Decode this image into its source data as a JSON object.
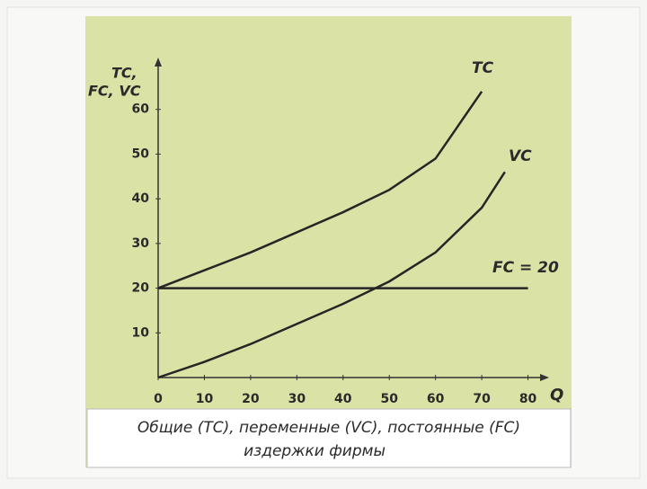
{
  "chart_data": {
    "type": "line",
    "y_label_lines": [
      "TC,",
      "FC, VC"
    ],
    "x_label": "Q",
    "xlim": [
      0,
      83
    ],
    "ylim": [
      0,
      70
    ],
    "xticks": [
      0,
      10,
      20,
      30,
      40,
      50,
      60,
      70,
      80
    ],
    "yticks": [
      10,
      20,
      30,
      40,
      50,
      60
    ],
    "series": [
      {
        "name": "TC",
        "color": "#262626",
        "x": [
          0,
          10,
          20,
          30,
          40,
          50,
          60,
          70
        ],
        "values": [
          20,
          24,
          28,
          32.5,
          37,
          42,
          49,
          64
        ]
      },
      {
        "name": "VC",
        "color": "#262626",
        "x": [
          0,
          10,
          20,
          30,
          40,
          50,
          60,
          70,
          75
        ],
        "values": [
          0,
          3.5,
          7.5,
          12,
          16.5,
          21.5,
          28,
          38,
          46
        ]
      },
      {
        "name": "FC = 20",
        "color": "#262626",
        "x": [
          0,
          80
        ],
        "values": [
          20,
          20
        ]
      }
    ],
    "caption": [
      "Общие (TC), переменные (VC), постоянные (FC)",
      "издержки  фирмы"
    ]
  }
}
